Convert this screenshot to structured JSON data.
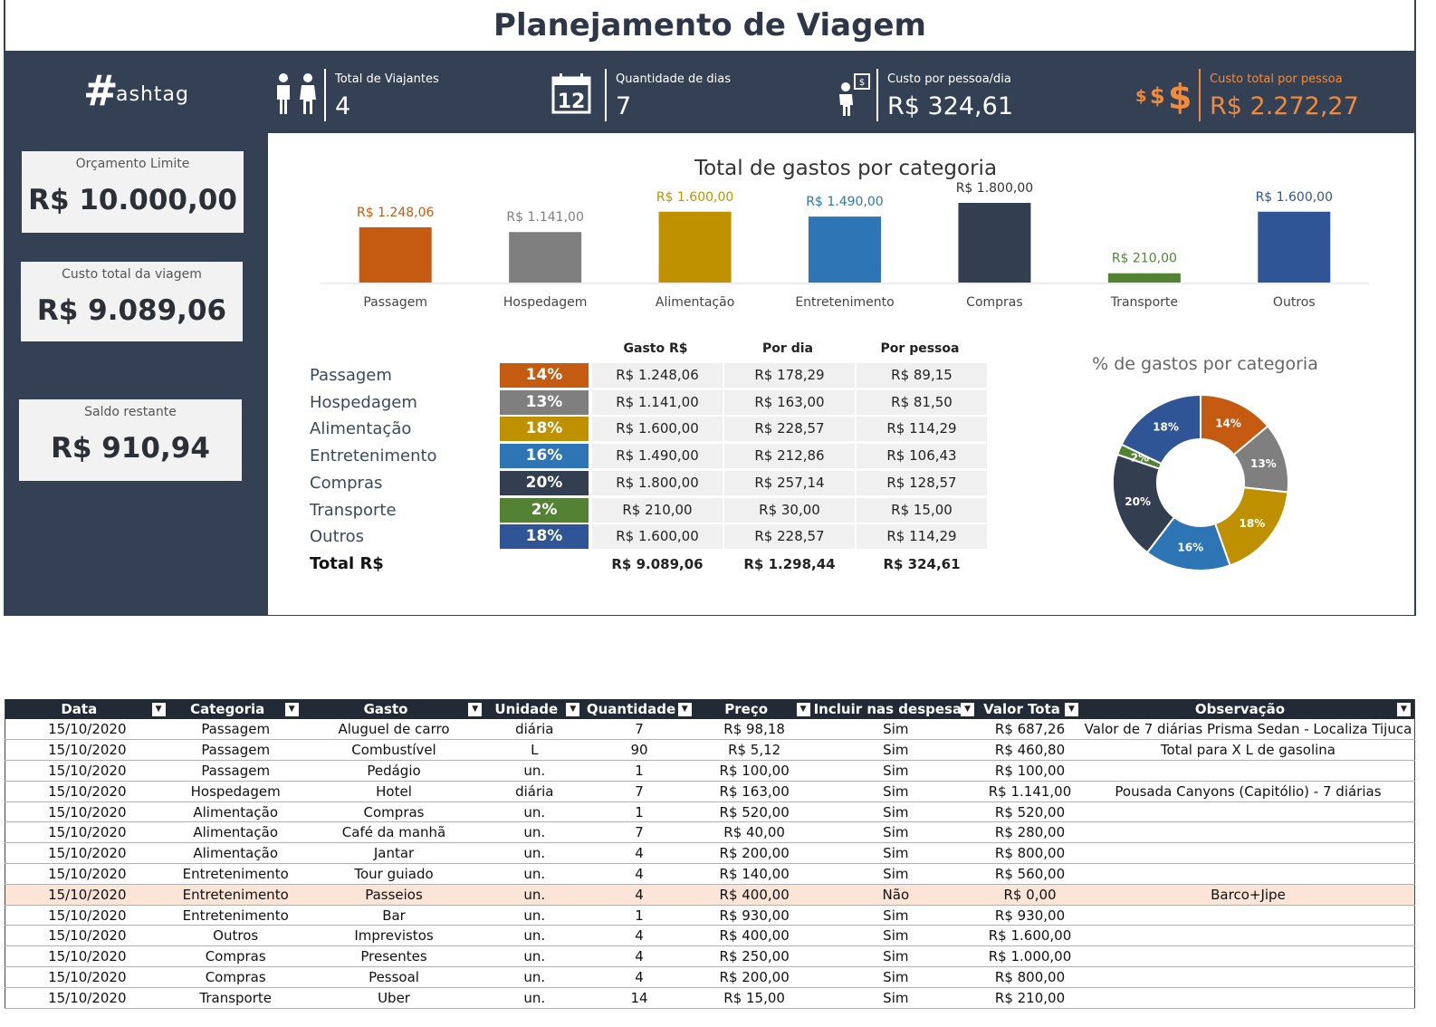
{
  "title": "Planejamento de Viagem",
  "logo": {
    "mark": "#",
    "word": "ashtag"
  },
  "kpis": [
    {
      "icon": "travelers-icon",
      "label": "Total de Viajantes",
      "value": "4"
    },
    {
      "icon": "calendar-icon",
      "label": "Quantidade de dias",
      "value": "7",
      "calendar_number": "12"
    },
    {
      "icon": "person-money-icon",
      "label": "Custo por pessoa/dia",
      "value": "R$ 324,61"
    },
    {
      "icon": "dollar-signs-icon",
      "label": "Custo total por pessoa",
      "value": "R$ 2.272,27"
    }
  ],
  "cards": {
    "budget": {
      "label": "Orçamento Limite",
      "value": "R$ 10.000,00"
    },
    "total_cost": {
      "label": "Custo total da viagem",
      "value": "R$ 9.089,06"
    },
    "balance": {
      "label": "Saldo restante",
      "value": "R$ 910,94"
    }
  },
  "colors": {
    "Passagem": "#c55a11",
    "Hospedagem": "#7f7f7f",
    "Alimentação": "#bf9000",
    "Entretenimento": "#2e75b6",
    "Compras": "#333f50",
    "Transporte": "#548235",
    "Outros": "#2f5597",
    "dark_bg": "#344154",
    "accent_orange": "#f08a3c"
  },
  "chart_data": [
    {
      "type": "bar",
      "title": "Total de gastos por categoria",
      "categories": [
        "Passagem",
        "Hospedagem",
        "Alimentação",
        "Entretenimento",
        "Compras",
        "Transporte",
        "Outros"
      ],
      "values": [
        1248.06,
        1141.0,
        1600.0,
        1490.0,
        1800.0,
        210.0,
        1600.0
      ],
      "data_labels": [
        "R$ 1.248,06",
        "R$ 1.141,00",
        "R$ 1.600,00",
        "R$ 1.490,00",
        "R$ 1.800,00",
        "R$ 210,00",
        "R$ 1.600,00"
      ],
      "ylim": [
        0,
        1800
      ],
      "grid": false,
      "legend": "none"
    },
    {
      "type": "pie",
      "title": "% de gastos por categoria",
      "categories": [
        "Passagem",
        "Hospedagem",
        "Alimentação",
        "Entretenimento",
        "Compras",
        "Transporte",
        "Outros"
      ],
      "values": [
        14,
        13,
        18,
        16,
        20,
        2,
        18
      ],
      "data_labels": [
        "14%",
        "13%",
        "18%",
        "16%",
        "20%",
        "2%",
        "18%"
      ],
      "donut": true,
      "legend": "none"
    }
  ],
  "summary": {
    "headers": {
      "gasto": "Gasto R$",
      "por_dia": "Por dia",
      "por_pessoa": "Por pessoa"
    },
    "rows": [
      {
        "cat": "Passagem",
        "pct": "14%",
        "gasto": "R$ 1.248,06",
        "dia": "R$ 178,29",
        "pessoa": "R$ 89,15"
      },
      {
        "cat": "Hospedagem",
        "pct": "13%",
        "gasto": "R$ 1.141,00",
        "dia": "R$ 163,00",
        "pessoa": "R$ 81,50"
      },
      {
        "cat": "Alimentação",
        "pct": "18%",
        "gasto": "R$ 1.600,00",
        "dia": "R$ 228,57",
        "pessoa": "R$ 114,29"
      },
      {
        "cat": "Entretenimento",
        "pct": "16%",
        "gasto": "R$ 1.490,00",
        "dia": "R$ 212,86",
        "pessoa": "R$ 106,43"
      },
      {
        "cat": "Compras",
        "pct": "20%",
        "gasto": "R$ 1.800,00",
        "dia": "R$ 257,14",
        "pessoa": "R$ 128,57"
      },
      {
        "cat": "Transporte",
        "pct": "2%",
        "gasto": "R$ 210,00",
        "dia": "R$ 30,00",
        "pessoa": "R$ 15,00"
      },
      {
        "cat": "Outros",
        "pct": "18%",
        "gasto": "R$ 1.600,00",
        "dia": "R$ 228,57",
        "pessoa": "R$ 114,29"
      }
    ],
    "total": {
      "label": "Total R$",
      "gasto": "R$ 9.089,06",
      "dia": "R$ 1.298,44",
      "pessoa": "R$ 324,61"
    }
  },
  "table": {
    "columns": [
      "Data",
      "Categoria",
      "Gasto",
      "Unidade",
      "Quantidade",
      "Preço",
      "Incluir nas despesa",
      "Valor Tota",
      "Observação"
    ],
    "rows": [
      [
        "15/10/2020",
        "Passagem",
        "Aluguel de carro",
        "diária",
        "7",
        "R$ 98,18",
        "Sim",
        "R$ 687,26",
        "Valor de 7 diárias Prisma Sedan - Localiza Tijuca"
      ],
      [
        "15/10/2020",
        "Passagem",
        "Combustível",
        "L",
        "90",
        "R$ 5,12",
        "Sim",
        "R$ 460,80",
        "Total para X L de gasolina"
      ],
      [
        "15/10/2020",
        "Passagem",
        "Pedágio",
        "un.",
        "1",
        "R$ 100,00",
        "Sim",
        "R$ 100,00",
        ""
      ],
      [
        "15/10/2020",
        "Hospedagem",
        "Hotel",
        "diária",
        "7",
        "R$ 163,00",
        "Sim",
        "R$ 1.141,00",
        "Pousada Canyons (Capitólio) - 7 diárias"
      ],
      [
        "15/10/2020",
        "Alimentação",
        "Compras",
        "un.",
        "1",
        "R$ 520,00",
        "Sim",
        "R$ 520,00",
        ""
      ],
      [
        "15/10/2020",
        "Alimentação",
        "Café da manhã",
        "un.",
        "7",
        "R$ 40,00",
        "Sim",
        "R$ 280,00",
        ""
      ],
      [
        "15/10/2020",
        "Alimentação",
        "Jantar",
        "un.",
        "4",
        "R$ 200,00",
        "Sim",
        "R$ 800,00",
        ""
      ],
      [
        "15/10/2020",
        "Entretenimento",
        "Tour guiado",
        "un.",
        "4",
        "R$ 140,00",
        "Sim",
        "R$ 560,00",
        ""
      ],
      [
        "15/10/2020",
        "Entretenimento",
        "Passeios",
        "un.",
        "4",
        "R$ 400,00",
        "Não",
        "R$ 0,00",
        "Barco+Jipe"
      ],
      [
        "15/10/2020",
        "Entretenimento",
        "Bar",
        "un.",
        "1",
        "R$ 930,00",
        "Sim",
        "R$ 930,00",
        ""
      ],
      [
        "15/10/2020",
        "Outros",
        "Imprevistos",
        "un.",
        "4",
        "R$ 400,00",
        "Sim",
        "R$ 1.600,00",
        ""
      ],
      [
        "15/10/2020",
        "Compras",
        "Presentes",
        "un.",
        "4",
        "R$ 250,00",
        "Sim",
        "R$ 1.000,00",
        ""
      ],
      [
        "15/10/2020",
        "Compras",
        "Pessoal",
        "un.",
        "4",
        "R$ 200,00",
        "Sim",
        "R$ 800,00",
        ""
      ],
      [
        "15/10/2020",
        "Transporte",
        "Uber",
        "un.",
        "14",
        "R$ 15,00",
        "Sim",
        "R$ 210,00",
        ""
      ]
    ],
    "highlighted_row": 8,
    "highlight_color": "#fce4d6"
  }
}
